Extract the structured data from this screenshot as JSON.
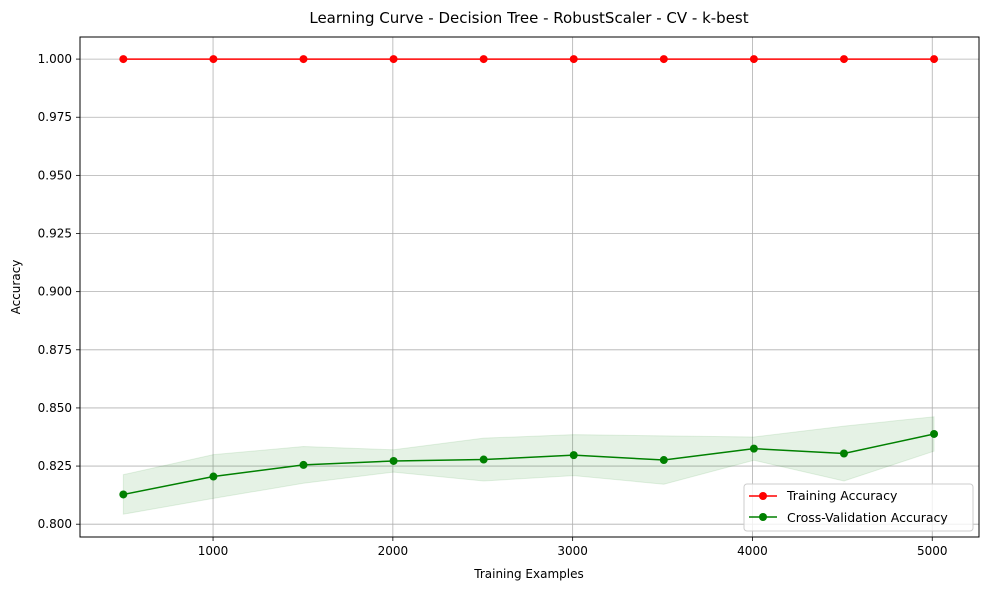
{
  "chart_data": {
    "type": "line",
    "title": "Learning Curve - Decision Tree - RobustScaler - CV - k-best",
    "xlabel": "Training Examples",
    "ylabel": "Accuracy",
    "xlim": [
      260,
      5260
    ],
    "ylim": [
      0.7945,
      1.0095
    ],
    "x_ticks": [
      1000,
      2000,
      3000,
      4000,
      5000
    ],
    "y_ticks": [
      0.8,
      0.825,
      0.85,
      0.875,
      0.9,
      0.925,
      0.95,
      0.975,
      1.0
    ],
    "y_tick_labels": [
      "0.800",
      "0.825",
      "0.850",
      "0.875",
      "0.900",
      "0.925",
      "0.950",
      "0.975",
      "1.000"
    ],
    "grid": true,
    "legend_position": "lower-right",
    "x": [
      501,
      1002,
      1503,
      2004,
      2505,
      3006,
      3507,
      4008,
      4509,
      5010
    ],
    "series": [
      {
        "name": "Training Accuracy",
        "color": "#ff0000",
        "values": [
          1.0,
          1.0,
          1.0,
          1.0,
          1.0,
          1.0,
          1.0,
          1.0,
          1.0,
          1.0
        ],
        "band_lower": [
          1.0,
          1.0,
          1.0,
          1.0,
          1.0,
          1.0,
          1.0,
          1.0,
          1.0,
          1.0
        ],
        "band_upper": [
          1.0,
          1.0,
          1.0,
          1.0,
          1.0,
          1.0,
          1.0,
          1.0,
          1.0,
          1.0
        ]
      },
      {
        "name": "Cross-Validation Accuracy",
        "color": "#008000",
        "values": [
          0.8128,
          0.8205,
          0.8255,
          0.8272,
          0.8278,
          0.8297,
          0.8276,
          0.8325,
          0.8304,
          0.8388
        ],
        "band_lower": [
          0.8043,
          0.8111,
          0.8176,
          0.8224,
          0.8186,
          0.8209,
          0.8172,
          0.8275,
          0.8186,
          0.8314
        ],
        "band_upper": [
          0.8213,
          0.8299,
          0.8334,
          0.832,
          0.837,
          0.8385,
          0.838,
          0.8375,
          0.8422,
          0.8462
        ]
      }
    ]
  }
}
